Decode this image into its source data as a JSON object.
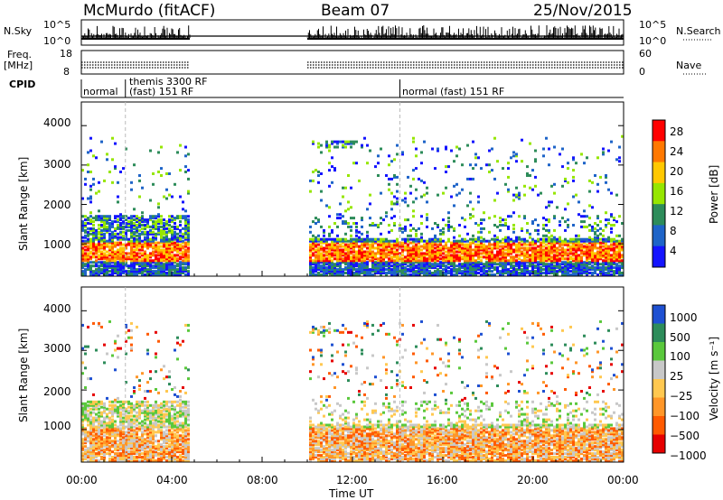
{
  "header": {
    "station": "McMurdo (fitACF)",
    "beam": "Beam 07",
    "date": "25/Nov/2015"
  },
  "params": {
    "nsky_label": "N.Sky",
    "nsky_ticks": [
      "10^5",
      "10^0"
    ],
    "nsearch_label": "N.Search",
    "nsearch_ticks": [
      "10^5",
      "10^0"
    ],
    "freq_label_1": "Freq.",
    "freq_label_2": "[MHz]",
    "freq_ticks": [
      "18",
      "8"
    ],
    "nave_label": "Nave",
    "nave_ticks": [
      "60",
      "0"
    ],
    "cpid_label": "CPID",
    "cpid_entries": [
      "normal",
      "themis 3300 RF",
      "(fast) 151 RF",
      "normal (fast) 151 RF"
    ]
  },
  "chart_data": [
    {
      "type": "heatmap",
      "title": "",
      "xlabel": "",
      "ylabel": "Slant Range [km]",
      "x_ticks": [
        "00:00",
        "04:00",
        "08:00",
        "12:00",
        "16:00",
        "20:00",
        "00:00"
      ],
      "xlim_hours": [
        0,
        24
      ],
      "y_ticks": [
        1000,
        2000,
        3000,
        4000
      ],
      "ylim_km": [
        180,
        4600
      ],
      "colorbar": {
        "label": "Power [dB]",
        "ticks": [
          "28",
          "24",
          "20",
          "16",
          "12",
          "8",
          "4"
        ],
        "colors": [
          "#ff0000",
          "#ff7800",
          "#ffc800",
          "#96e600",
          "#2d8c5a",
          "#1e64c8",
          "#1414ff"
        ]
      },
      "data_coverage_hours": [
        [
          0,
          4.8
        ],
        [
          10.0,
          24.0
        ]
      ],
      "dominant_band_km": [
        500,
        1000
      ]
    },
    {
      "type": "heatmap",
      "title": "",
      "xlabel": "Time UT",
      "ylabel": "Slant Range [km]",
      "x_ticks": [
        "00:00",
        "04:00",
        "08:00",
        "12:00",
        "16:00",
        "20:00",
        "00:00"
      ],
      "xlim_hours": [
        0,
        24
      ],
      "y_ticks": [
        1000,
        2000,
        3000,
        4000
      ],
      "ylim_km": [
        180,
        4600
      ],
      "colorbar": {
        "label": "Velocity [m s⁻¹]",
        "ticks": [
          "1000",
          "500",
          "100",
          "25",
          "−25",
          "−100",
          "−500",
          "−1000"
        ],
        "colors": [
          "#1e50d2",
          "#2d8c5a",
          "#5ac83c",
          "#c8c8c8",
          "#ffc850",
          "#ff9628",
          "#ff5a00",
          "#e60000"
        ]
      },
      "data_coverage_hours": [
        [
          0,
          4.8
        ],
        [
          10.0,
          24.0
        ]
      ]
    }
  ]
}
